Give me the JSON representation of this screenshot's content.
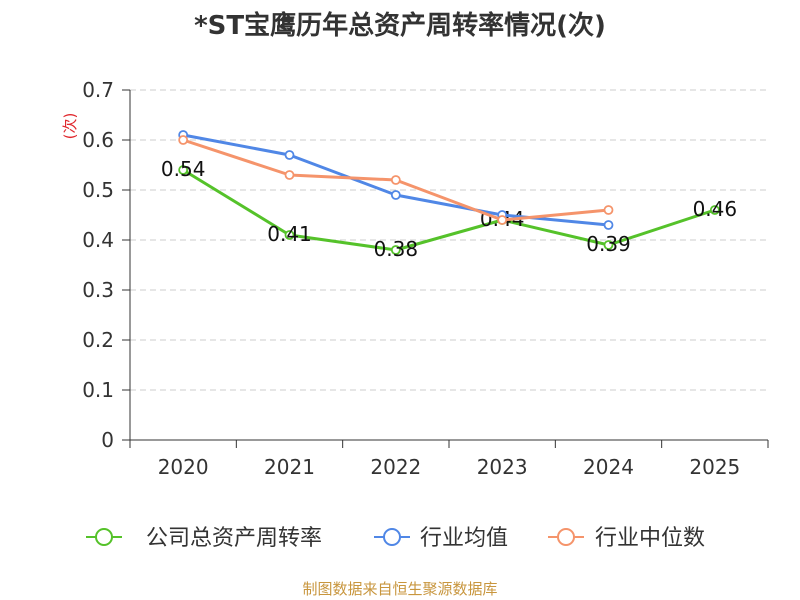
{
  "chart_data": {
    "type": "line",
    "title": "*ST宝鹰历年总资产周转率情况(次)",
    "xlabel": "",
    "ylabel": "(次)",
    "categories": [
      "2020",
      "2021",
      "2022",
      "2023",
      "2024",
      "2025"
    ],
    "ylim": [
      0,
      0.7
    ],
    "yticks": [
      0,
      0.1,
      0.2,
      0.3,
      0.4,
      0.5,
      0.6,
      0.7
    ],
    "ytick_labels": [
      "0",
      "0.1",
      "0.2",
      "0.3",
      "0.4",
      "0.5",
      "0.6",
      "0.7"
    ],
    "grid": true,
    "legend": "bottom",
    "series": [
      {
        "name": "公司总资产周转率",
        "color": "#55c22a",
        "values": [
          0.54,
          0.41,
          0.38,
          0.44,
          0.39,
          0.46
        ],
        "labels": [
          "0.54",
          "0.41",
          "0.38",
          "0.44",
          "0.39",
          "0.46"
        ]
      },
      {
        "name": "行业均值",
        "color": "#5087e6",
        "values": [
          0.61,
          0.57,
          0.49,
          0.45,
          0.43,
          null
        ]
      },
      {
        "name": "行业中位数",
        "color": "#f5946b",
        "values": [
          0.6,
          0.53,
          0.52,
          0.44,
          0.46,
          null
        ]
      }
    ]
  },
  "footer": "制图数据来自恒生聚源数据库",
  "colors": {
    "ylabel": "#e0282e",
    "footer": "#c8963e",
    "axis": "#333333",
    "grid": "#cccccc"
  }
}
